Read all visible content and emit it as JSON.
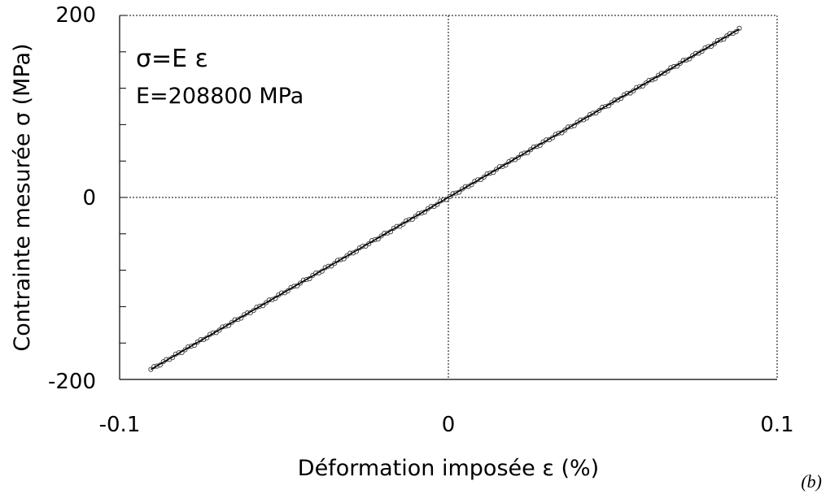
{
  "chart_data": {
    "type": "scatter",
    "xlabel": "Déformation imposée ε  (%)",
    "ylabel": "Contrainte mesurée σ (MPa)",
    "xlim": [
      -0.1,
      0.1
    ],
    "ylim": [
      -200,
      200
    ],
    "x_ticks": [
      "-0.1",
      "0",
      "0.1"
    ],
    "y_ticks": [
      "-200",
      "0",
      "200"
    ],
    "y_minor_step": 40,
    "grid": "dashed zero lines",
    "annotations": {
      "equation": "σ=E ε",
      "modulus": "E=208800 MPa"
    },
    "panel_label": "(b)",
    "series": [
      {
        "marker": "open-circle",
        "slope_mpa_per_percent": 2088,
        "x_range": [
          -0.0905,
          0.0885
        ],
        "point_count": 190
      }
    ],
    "fit_line": {
      "x": [
        -0.0905,
        0.0885
      ],
      "y": [
        -189,
        185
      ]
    }
  }
}
